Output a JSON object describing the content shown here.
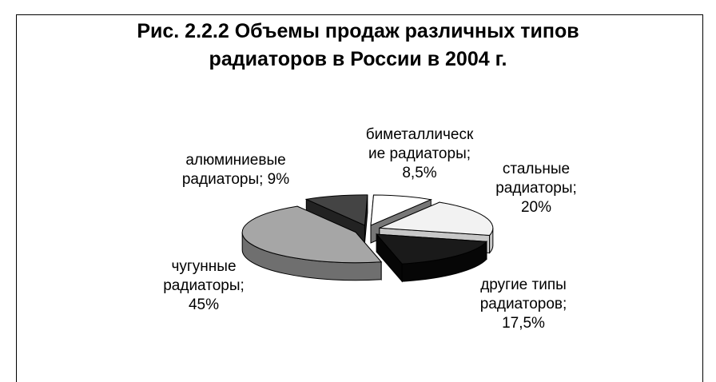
{
  "chart_data": {
    "type": "pie",
    "title_lines": [
      "Рис. 2.2.2 Объемы продаж различных типов",
      "радиаторов в России в 2004 г."
    ],
    "slices": [
      {
        "label_lines": [
          "стальные",
          "радиаторы;",
          "20%"
        ],
        "value": 20,
        "color": "#f2f2f2",
        "side": "#c8c8c8"
      },
      {
        "label_lines": [
          "другие типы",
          "радиаторов;",
          "17,5%"
        ],
        "value": 17.5,
        "color": "#1a1a1a",
        "side": "#060606"
      },
      {
        "label_lines": [
          "чугунные",
          "радиаторы;",
          "45%"
        ],
        "value": 45,
        "color": "#a6a6a6",
        "side": "#6f6f6f"
      },
      {
        "label_lines": [
          "алюминиевые",
          "радиаторы; 9%"
        ],
        "value": 9,
        "color": "#444444",
        "side": "#222222"
      },
      {
        "label_lines": [
          "биметаллическ",
          "ие радиаторы;",
          "8,5%"
        ],
        "value": 8.5,
        "color": "#ffffff",
        "side": "#777777"
      }
    ],
    "legend": "none",
    "style": "3d-exploded"
  }
}
